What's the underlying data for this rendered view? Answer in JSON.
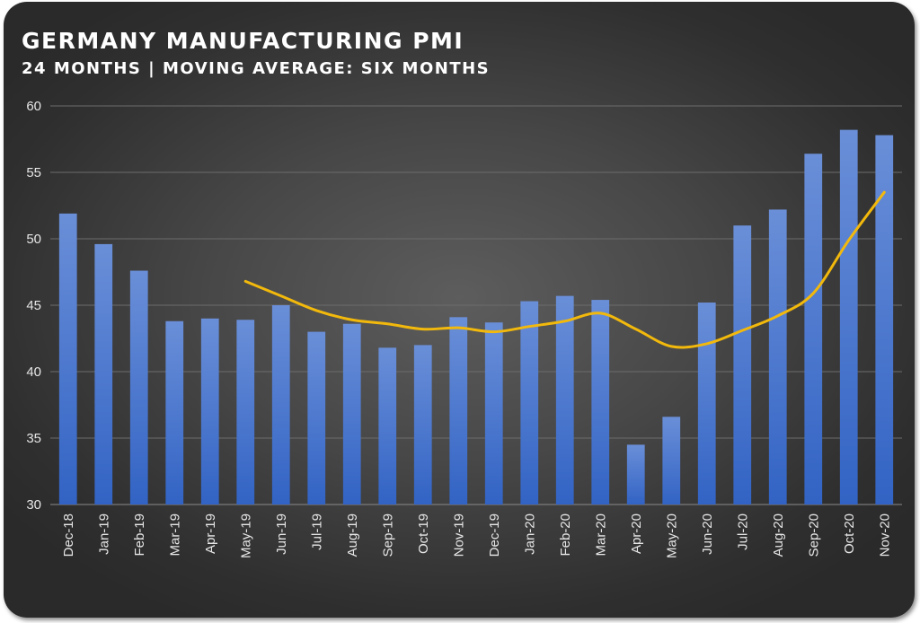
{
  "chart_data": {
    "type": "bar",
    "title": "GERMANY MANUFACTURING PMI",
    "subtitle": "24 MONTHS | MOVING AVERAGE: SIX MONTHS",
    "categories": [
      "Dec-18",
      "Jan-19",
      "Feb-19",
      "Mar-19",
      "Apr-19",
      "May-19",
      "Jun-19",
      "Jul-19",
      "Aug-19",
      "Sep-19",
      "Oct-19",
      "Nov-19",
      "Dec-19",
      "Jan-20",
      "Feb-20",
      "Mar-20",
      "Apr-20",
      "May-20",
      "Jun-20",
      "Jul-20",
      "Aug-20",
      "Sep-20",
      "Oct-20",
      "Nov-20"
    ],
    "series": [
      {
        "type": "bar",
        "values": [
          51.9,
          49.6,
          47.6,
          43.8,
          44.0,
          43.9,
          45.0,
          43.0,
          43.6,
          41.8,
          42.0,
          44.1,
          43.7,
          45.3,
          45.7,
          45.4,
          34.5,
          36.6,
          45.2,
          51.0,
          52.2,
          56.4,
          58.2,
          57.8
        ],
        "color": "#4a78d0"
      },
      {
        "type": "line",
        "values": [
          null,
          null,
          null,
          null,
          null,
          46.8,
          45.7,
          44.6,
          43.9,
          43.6,
          43.2,
          43.3,
          43.0,
          43.4,
          43.8,
          44.4,
          43.2,
          41.9,
          42.1,
          43.1,
          44.2,
          45.9,
          49.9,
          53.5
        ],
        "color": "#f2b90c"
      }
    ],
    "ylim": [
      30,
      60
    ],
    "yticks": [
      30,
      35,
      40,
      45,
      50,
      55,
      60
    ],
    "grid": true,
    "legend": "none"
  }
}
